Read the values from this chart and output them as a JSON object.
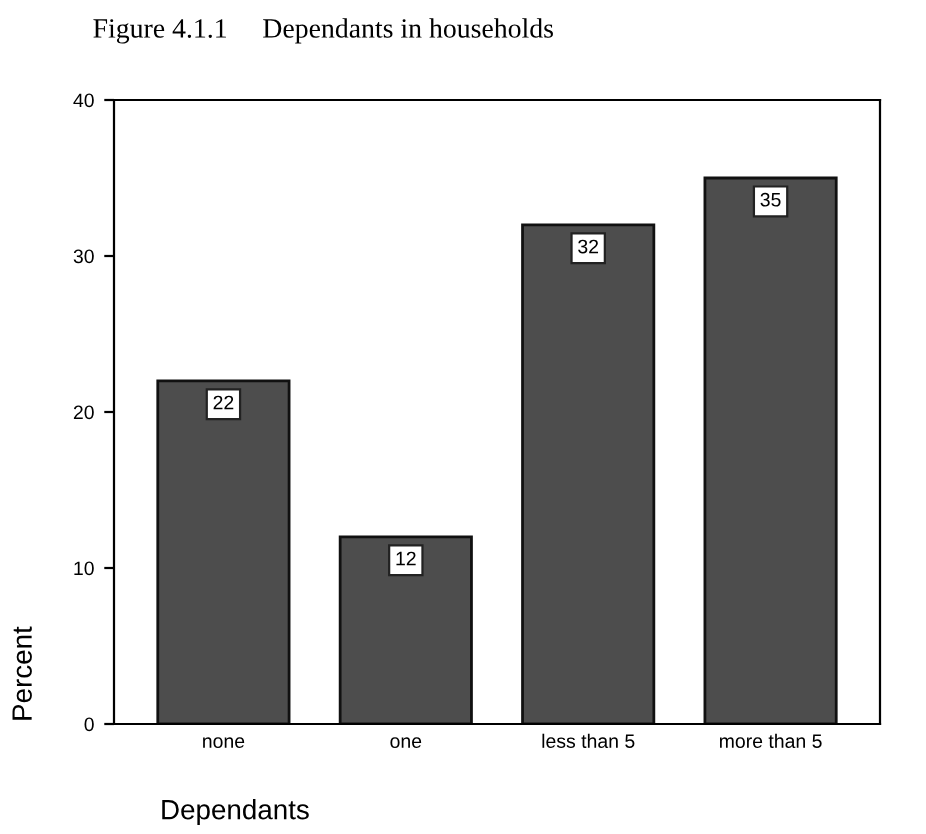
{
  "chart_data": {
    "type": "bar",
    "title": "Figure 4.1.1     Dependants in households",
    "categories": [
      "none",
      "one",
      "less than 5",
      "more than 5"
    ],
    "values": [
      22,
      12,
      32,
      35
    ],
    "color": "#4d4d4d",
    "ylim": [
      0,
      40
    ],
    "yticks": [
      0,
      10,
      20,
      30,
      40
    ],
    "xlabel": "Dependants",
    "ylabel": "Percent",
    "data_labels": true,
    "grid": false
  }
}
